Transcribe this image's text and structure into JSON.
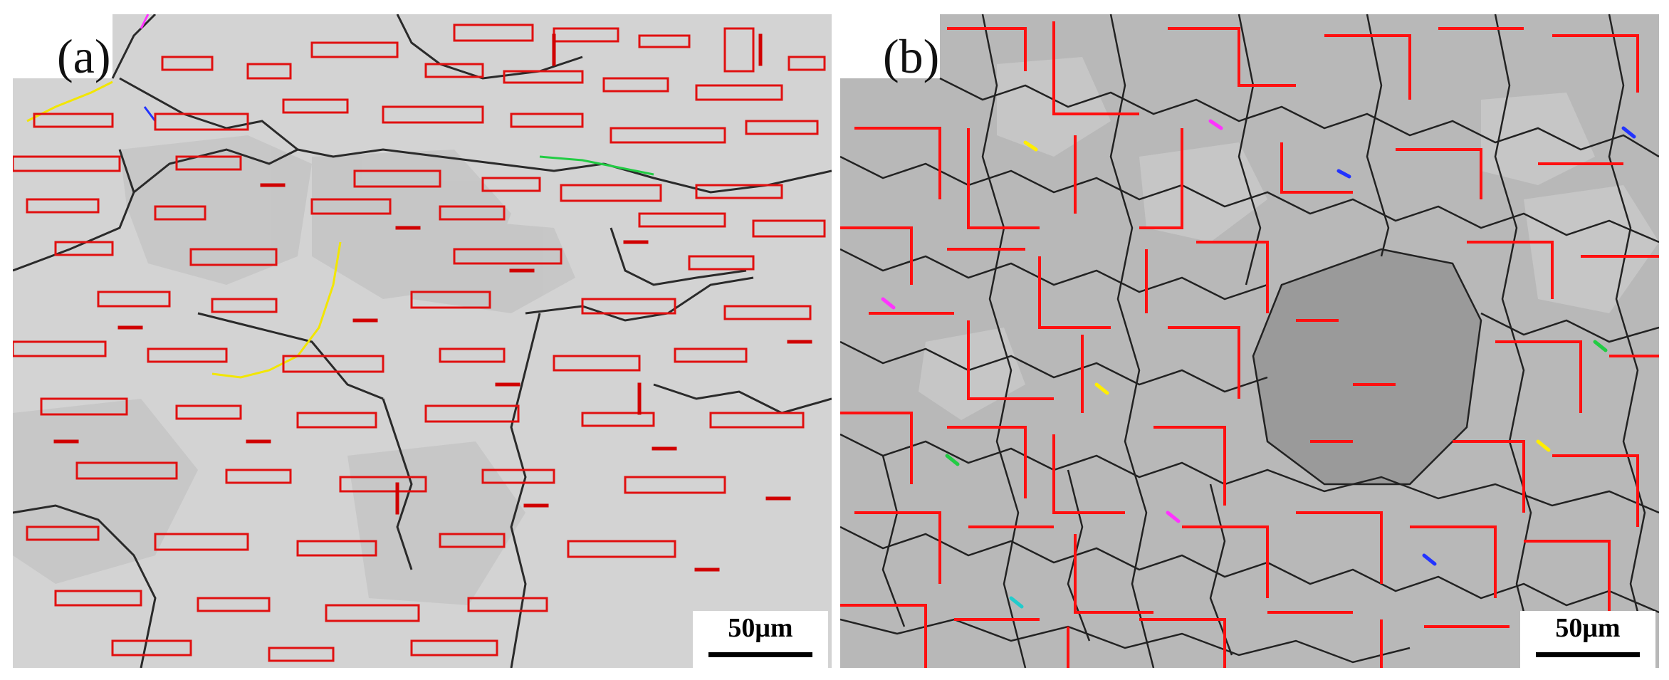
{
  "figure": {
    "panels": [
      {
        "id": "a",
        "label": "(a)",
        "scale_text": "50μm",
        "icon": "ebsd-grain-map-coarse"
      },
      {
        "id": "b",
        "label": "(b)",
        "scale_text": "50μm",
        "icon": "ebsd-grain-map-refined"
      }
    ],
    "colors": {
      "matrix_a": "#d3d3d3",
      "matrix_b": "#b8b8b8",
      "twin_boundary": "#ee1111",
      "grain_boundary": "#222222",
      "minor_boundaries": [
        "#ffee00",
        "#ff33ff",
        "#2233ff",
        "#22cc44",
        "#22cccc"
      ]
    }
  }
}
